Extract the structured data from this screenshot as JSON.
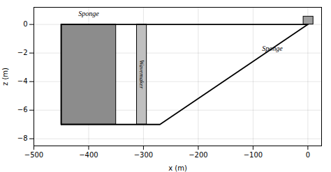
{
  "chart_data": {
    "type": "schematic",
    "xlabel": "x (m)",
    "ylabel": "z (m)",
    "xlim": [
      -500,
      25
    ],
    "ylim": [
      -8.5,
      1.2
    ],
    "xticks": [
      -500,
      -400,
      -300,
      -200,
      -100,
      0
    ],
    "yticks": [
      -8,
      -6,
      -4,
      -2,
      0
    ],
    "grid": true,
    "rectangles": [
      {
        "x1": -450,
        "x2": -350,
        "y1": -7.0,
        "y2": 0.0,
        "color": "#8c8c8c"
      },
      {
        "x1": -312,
        "x2": -294,
        "y1": -7.0,
        "y2": 0.0,
        "color": "#c0c0c0"
      },
      {
        "x1": -8,
        "x2": 10,
        "y1": 0.0,
        "y2": 0.55,
        "color": "#a0a0a0"
      }
    ],
    "lines": [
      {
        "x": [
          -450,
          -270,
          0
        ],
        "y": [
          -7.0,
          -7.0,
          0.0
        ],
        "color": "#000000"
      },
      {
        "x": [
          -450,
          0
        ],
        "y": [
          0.0,
          0.0
        ],
        "color": "#000000"
      },
      {
        "x": [
          -450,
          -450
        ],
        "y": [
          -7.0,
          0.0
        ],
        "color": "#000000"
      }
    ],
    "annotations": [
      {
        "x": -400,
        "y": 0.55,
        "text": "Sponge"
      },
      {
        "x": -303,
        "y": -3.5,
        "text": "Wavemaker"
      },
      {
        "x": -65,
        "y": -1.7,
        "text": "Sponge"
      }
    ]
  }
}
